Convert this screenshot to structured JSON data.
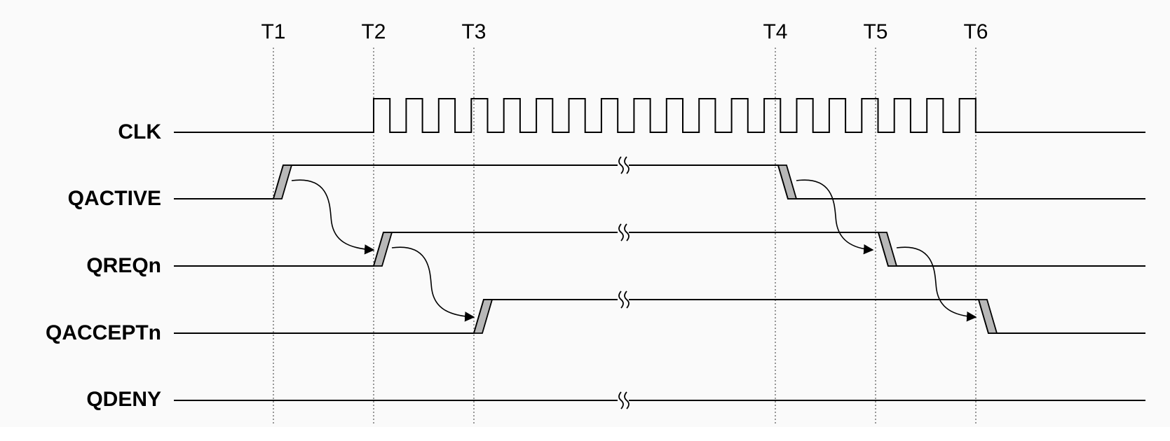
{
  "timing_diagram": {
    "time_markers": [
      "T1",
      "T2",
      "T3",
      "T4",
      "T5",
      "T6"
    ],
    "signals": [
      {
        "name": "CLK"
      },
      {
        "name": "QACTIVE"
      },
      {
        "name": "QREQn"
      },
      {
        "name": "QACCEPTn"
      },
      {
        "name": "QDENY"
      }
    ],
    "clock": {
      "cycles": 19
    },
    "transitions": [
      {
        "signal": "QACTIVE",
        "at": "T1",
        "direction": "rise"
      },
      {
        "signal": "QREQn",
        "at": "T2",
        "direction": "rise"
      },
      {
        "signal": "QACCEPTn",
        "at": "T3",
        "direction": "rise"
      },
      {
        "signal": "QACTIVE",
        "at": "T4",
        "direction": "fall"
      },
      {
        "signal": "QREQn",
        "at": "T5",
        "direction": "fall"
      },
      {
        "signal": "QACCEPTn",
        "at": "T6",
        "direction": "fall"
      }
    ],
    "causality_arrows": [
      {
        "from": "QACTIVE",
        "to": "QREQn",
        "at": "T1"
      },
      {
        "from": "QREQn",
        "to": "QACCEPTn",
        "at": "T2"
      },
      {
        "from": "QACTIVE",
        "to": "QREQn",
        "at": "T4"
      },
      {
        "from": "QREQn",
        "to": "QACCEPTn",
        "at": "T5"
      }
    ],
    "colors": {
      "line": "#000000",
      "edge_fill": "#b8b8b8",
      "background": "#fafafa"
    }
  }
}
